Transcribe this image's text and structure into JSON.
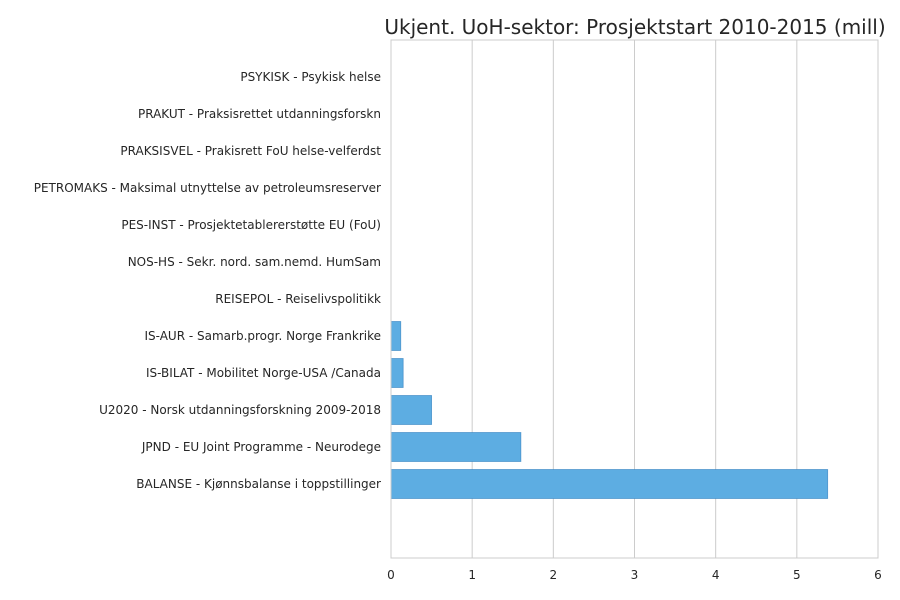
{
  "chart_data": {
    "type": "bar",
    "orientation": "horizontal",
    "title": "Ukjent. UoH-sektor: Prosjektstart 2010-2015 (mill)",
    "xlabel": "",
    "ylabel": "",
    "xlim": [
      0,
      6
    ],
    "xticks": [
      "0",
      "1",
      "2",
      "3",
      "4",
      "5",
      "6"
    ],
    "grid": "vertical",
    "bar_color": "#5dade2",
    "categories": [
      "PSYKISK - Psykisk helse",
      "PRAKUT - Praksisrettet utdanningsforskn",
      "PRAKSISVEL - Prakisrett FoU helse-velferdst",
      "PETROMAKS - Maksimal utnyttelse av petroleumsreserver",
      "PES-INST - Prosjektetablererstøtte EU (FoU)",
      "NOS-HS - Sekr. nord. sam.nemd. HumSam",
      "REISEPOL - Reiselivspolitikk",
      "IS-AUR - Samarb.progr. Norge Frankrike",
      "IS-BILAT - Mobilitet Norge-USA /Canada",
      "U2020 - Norsk utdanningsforskning 2009-2018",
      "JPND - EU Joint Programme - Neurodege",
      "BALANSE - Kjønnsbalanse i toppstillinger"
    ],
    "values": [
      0,
      0,
      0,
      0,
      0,
      0,
      0,
      0.12,
      0.15,
      0.5,
      1.6,
      5.38
    ]
  }
}
